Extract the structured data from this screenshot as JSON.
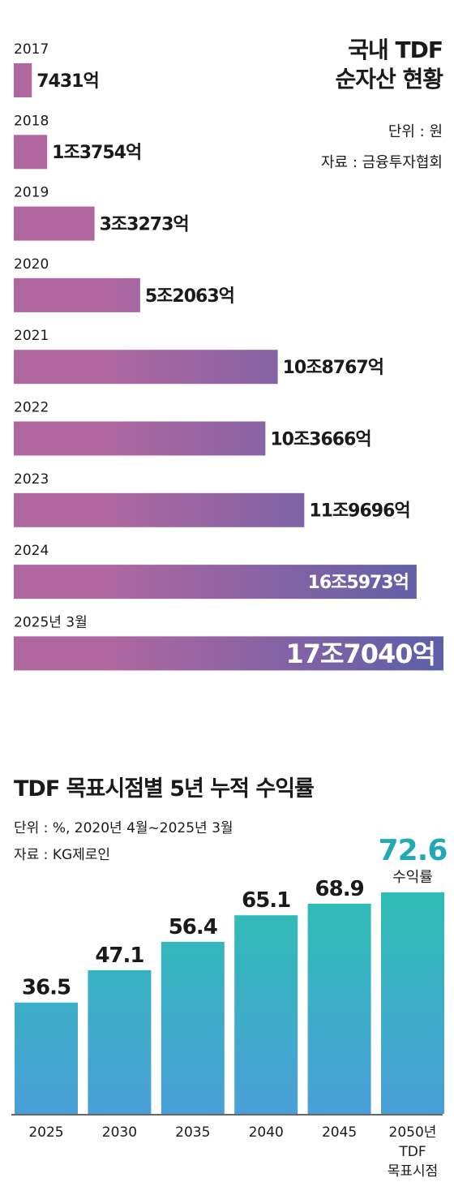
{
  "chart_data": [
    {
      "type": "bar",
      "orientation": "horizontal",
      "title": [
        "국내 TDF",
        "순자산 현황"
      ],
      "unit": "단위 : 원",
      "source": "자료 : 금융투자협회",
      "categories": [
        "2017",
        "2018",
        "2019",
        "2020",
        "2021",
        "2022",
        "2023",
        "2024",
        "2025년 3월"
      ],
      "values": [
        7431,
        13754,
        33273,
        52063,
        108767,
        103666,
        119696,
        165973,
        177040
      ],
      "value_unit": "억원",
      "data_labels": [
        "7431억",
        "1조3754억",
        "3조3273억",
        "5조2063억",
        "10조8767억",
        "10조3666억",
        "11조9696억",
        "16조5973억",
        "17조7040억"
      ],
      "colors": {
        "start": "#b0679f",
        "end": "#5b5fa9"
      }
    },
    {
      "type": "bar",
      "title": "TDF 목표시점별 5년 누적 수익률",
      "unit": "단위 : %, 2020년 4월~2025년 3월",
      "source": "자료 : KG제로인",
      "categories": [
        "2025",
        "2030",
        "2035",
        "2040",
        "2045",
        "2050년\nTDF\n목표시점"
      ],
      "values": [
        36.5,
        47.1,
        56.4,
        65.1,
        68.9,
        72.6
      ],
      "data_labels": [
        "36.5",
        "47.1",
        "56.4",
        "65.1",
        "68.9",
        "72.6"
      ],
      "highlight_index": 5,
      "highlight_caption": "수익률",
      "colors": {
        "top": "#2ebdb4",
        "bottom": "#4a9fd8",
        "highlight_text": "#22a9b6"
      }
    }
  ]
}
